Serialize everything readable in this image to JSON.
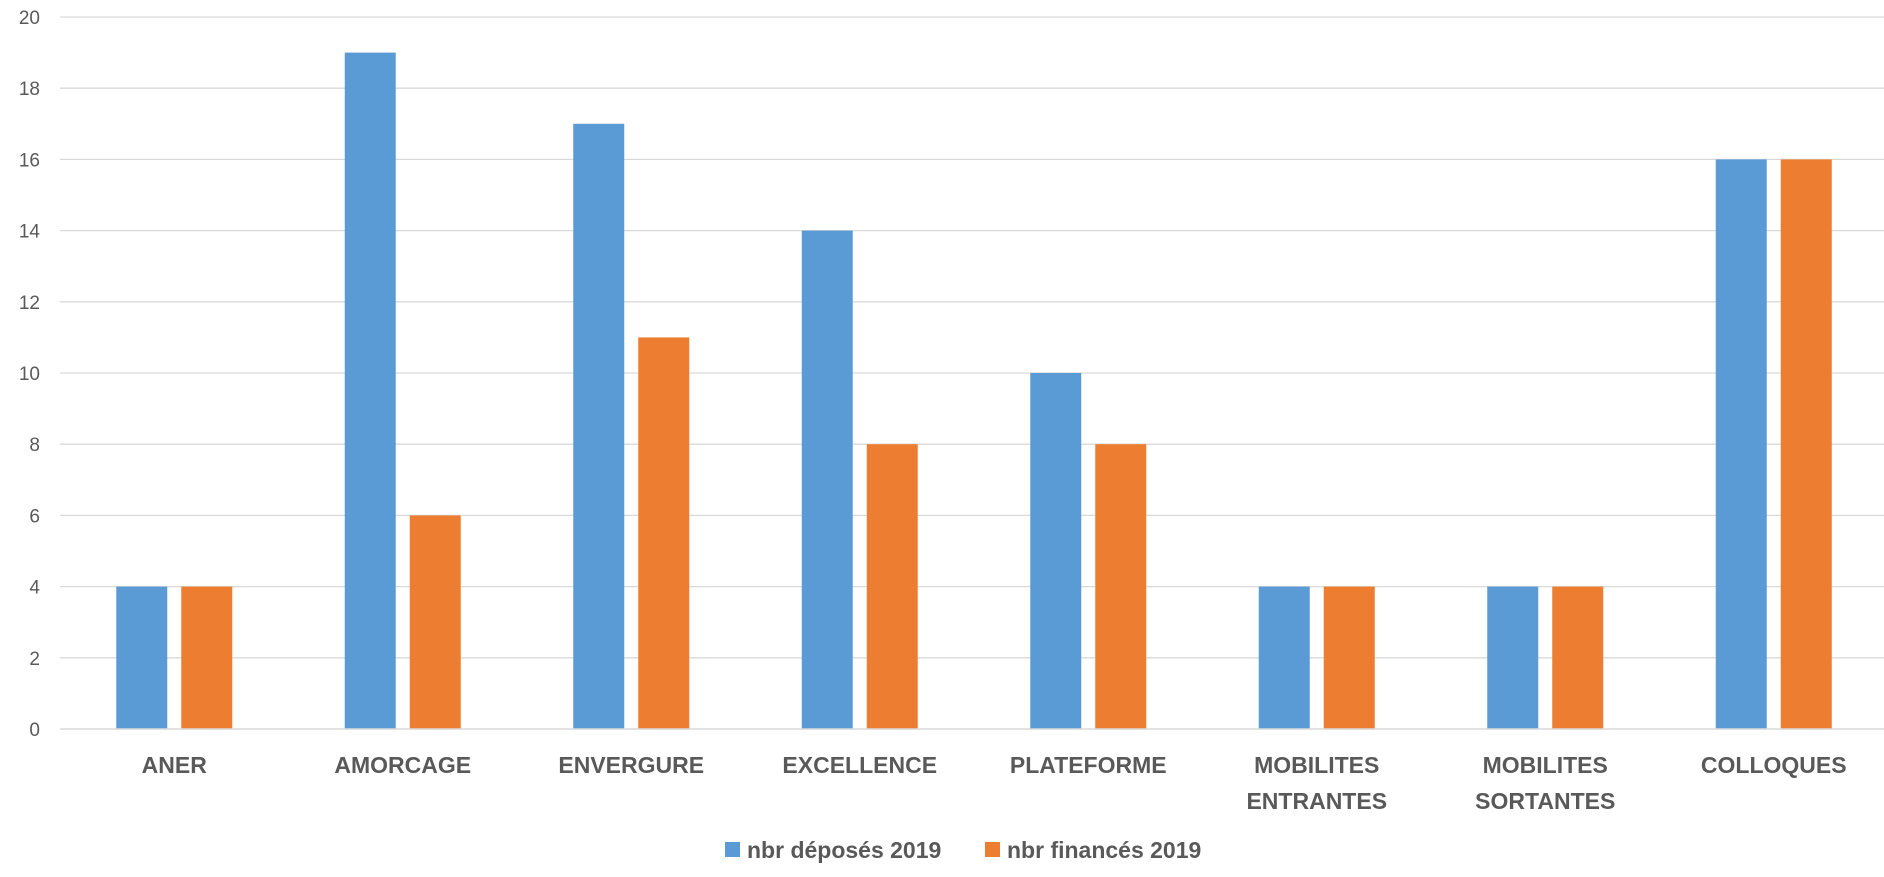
{
  "chart_data": {
    "type": "bar",
    "title": "",
    "xlabel": "",
    "ylabel": "",
    "ylim": [
      0,
      20
    ],
    "ytick_step": 2,
    "grid": true,
    "legend_position": "bottom",
    "categories": [
      [
        "ANER"
      ],
      [
        "AMORCAGE"
      ],
      [
        "ENVERGURE"
      ],
      [
        "EXCELLENCE"
      ],
      [
        "PLATEFORME"
      ],
      [
        "MOBILITES",
        "ENTRANTES"
      ],
      [
        "MOBILITES",
        "SORTANTES"
      ],
      [
        "COLLOQUES"
      ]
    ],
    "series": [
      {
        "name": "nbr déposés 2019",
        "color": "#5b9bd5",
        "values": [
          4,
          19,
          17,
          14,
          10,
          4,
          4,
          16
        ]
      },
      {
        "name": "nbr financés 2019",
        "color": "#ed7d31",
        "values": [
          4,
          6,
          11,
          8,
          8,
          4,
          4,
          16
        ]
      }
    ]
  }
}
